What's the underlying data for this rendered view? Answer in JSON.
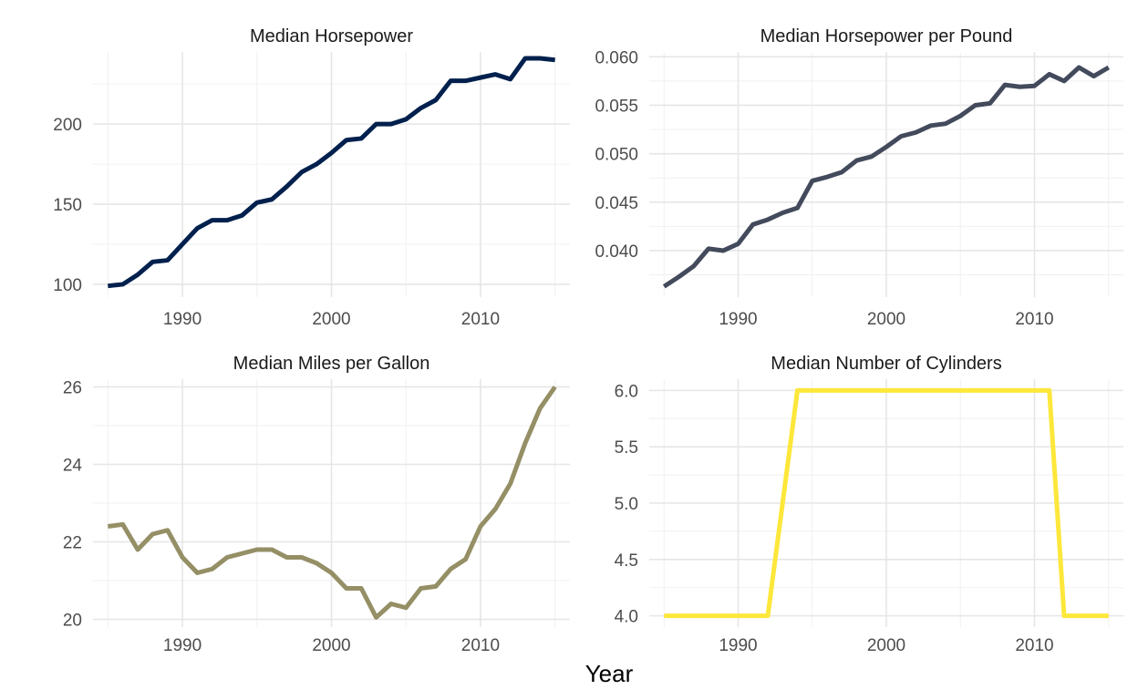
{
  "xlabel": "Year",
  "chart_data": [
    {
      "type": "line",
      "title": "Median Horsepower",
      "color": "#00204d",
      "x": [
        1985,
        1986,
        1987,
        1988,
        1989,
        1990,
        1991,
        1992,
        1993,
        1994,
        1995,
        1996,
        1997,
        1998,
        1999,
        2000,
        2001,
        2002,
        2003,
        2004,
        2005,
        2006,
        2007,
        2008,
        2009,
        2010,
        2011,
        2012,
        2013,
        2014,
        2015
      ],
      "values": [
        99,
        100,
        106,
        114,
        115,
        125,
        135,
        140,
        140,
        143,
        151,
        153,
        161,
        170,
        175,
        182,
        190,
        191,
        200,
        200,
        203,
        210,
        215,
        227,
        227,
        229,
        231,
        228,
        241,
        241,
        240
      ],
      "xlim": [
        1984,
        2016
      ],
      "ylim": [
        92,
        245
      ],
      "xticks": [
        1990,
        2000,
        2010
      ],
      "yticks": [
        100,
        150,
        200
      ],
      "ytick_labels": [
        "100",
        "150",
        "200"
      ]
    },
    {
      "type": "line",
      "title": "Median Horsepower per Pound",
      "color": "#434a5c",
      "x": [
        1985,
        1986,
        1987,
        1988,
        1989,
        1990,
        1991,
        1992,
        1993,
        1994,
        1995,
        1996,
        1997,
        1998,
        1999,
        2000,
        2001,
        2002,
        2003,
        2004,
        2005,
        2006,
        2007,
        2008,
        2009,
        2010,
        2011,
        2012,
        2013,
        2014,
        2015
      ],
      "values": [
        0.0363,
        0.0373,
        0.0384,
        0.0402,
        0.04,
        0.0407,
        0.0427,
        0.0432,
        0.0439,
        0.0444,
        0.0472,
        0.0476,
        0.0481,
        0.0493,
        0.0497,
        0.0507,
        0.0518,
        0.0522,
        0.0529,
        0.0531,
        0.0539,
        0.055,
        0.0552,
        0.0571,
        0.0569,
        0.057,
        0.0582,
        0.0575,
        0.0589,
        0.058,
        0.0589
      ],
      "xlim": [
        1984,
        2016
      ],
      "ylim": [
        0.0352,
        0.0605
      ],
      "xticks": [
        1990,
        2000,
        2010
      ],
      "yticks": [
        0.04,
        0.045,
        0.05,
        0.055,
        0.06
      ],
      "ytick_labels": [
        "0.040",
        "0.045",
        "0.050",
        "0.055",
        "0.060"
      ]
    },
    {
      "type": "line",
      "title": "Median Miles per Gallon",
      "color": "#958f66",
      "x": [
        1985,
        1986,
        1987,
        1988,
        1989,
        1990,
        1991,
        1992,
        1993,
        1994,
        1995,
        1996,
        1997,
        1998,
        1999,
        2000,
        2001,
        2002,
        2003,
        2004,
        2005,
        2006,
        2007,
        2008,
        2009,
        2010,
        2011,
        2012,
        2013,
        2014,
        2015
      ],
      "values": [
        22.4,
        22.45,
        21.8,
        22.2,
        22.3,
        21.6,
        21.2,
        21.3,
        21.6,
        21.7,
        21.8,
        21.8,
        21.6,
        21.6,
        21.45,
        21.2,
        20.8,
        20.8,
        20.05,
        20.4,
        20.3,
        20.8,
        20.85,
        21.3,
        21.55,
        22.4,
        22.85,
        23.5,
        24.55,
        25.45,
        26.0
      ],
      "xlim": [
        1984,
        2016
      ],
      "ylim": [
        19.8,
        26.2
      ],
      "xticks": [
        1990,
        2000,
        2010
      ],
      "yticks": [
        20,
        22,
        24,
        26
      ],
      "ytick_labels": [
        "20",
        "22",
        "24",
        "26"
      ]
    },
    {
      "type": "line",
      "title": "Median Number of Cylinders",
      "color": "#fde73a",
      "x": [
        1985,
        1986,
        1987,
        1988,
        1989,
        1990,
        1991,
        1992,
        1993,
        1994,
        1995,
        1996,
        1997,
        1998,
        1999,
        2000,
        2001,
        2002,
        2003,
        2004,
        2005,
        2006,
        2007,
        2008,
        2009,
        2010,
        2011,
        2012,
        2013,
        2014,
        2015
      ],
      "values": [
        4,
        4,
        4,
        4,
        4,
        4,
        4,
        4,
        5,
        6,
        6,
        6,
        6,
        6,
        6,
        6,
        6,
        6,
        6,
        6,
        6,
        6,
        6,
        6,
        6,
        6,
        6,
        4,
        4,
        4,
        4
      ],
      "xlim": [
        1984,
        2016
      ],
      "ylim": [
        3.9,
        6.1
      ],
      "xticks": [
        1990,
        2000,
        2010
      ],
      "yticks": [
        4.0,
        4.5,
        5.0,
        5.5,
        6.0
      ],
      "ytick_labels": [
        "4.0",
        "4.5",
        "5.0",
        "5.5",
        "6.0"
      ]
    }
  ]
}
